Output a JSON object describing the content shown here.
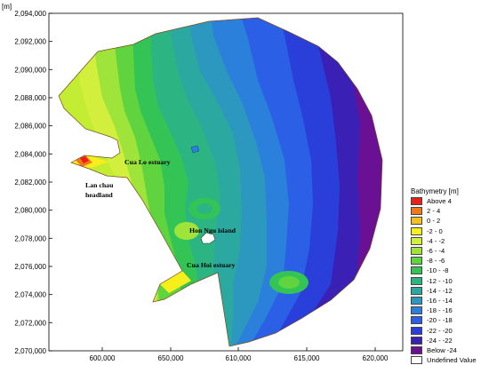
{
  "map": {
    "unit_label": "[m]",
    "y_ticks": [
      "2,094,000",
      "2,092,000",
      "2,090,000",
      "2,088,000",
      "2,086,000",
      "2,084,000",
      "2,082,000",
      "2,080,000",
      "2,078,000",
      "2,076,000",
      "2,074,000",
      "2,072,000",
      "2,070,000"
    ],
    "x_ticks": [
      "600,000",
      "650,000",
      "610,000",
      "615,000",
      "620,000"
    ],
    "annotations": [
      "Cua Lo estuary",
      "Lan chau",
      "headland",
      "Hon Ngu island",
      "Cua Hoi estuary"
    ]
  },
  "legend": {
    "title": "Bathymetry [m]",
    "items": [
      {
        "label": "Above   4",
        "color": "#e8201a"
      },
      {
        "label": "2 -  4",
        "color": "#f2761a"
      },
      {
        "label": "0 -  2",
        "color": "#f6be22"
      },
      {
        "label": "-2 -  0",
        "color": "#f7ef1c"
      },
      {
        "label": "-4 -  -2",
        "color": "#d1ef3c"
      },
      {
        "label": "-6 -  -4",
        "color": "#9fe43a"
      },
      {
        "label": "-8 -  -6",
        "color": "#5fd43e"
      },
      {
        "label": "-10 -  -8",
        "color": "#34c456"
      },
      {
        "label": "-12 -  -10",
        "color": "#2cb582"
      },
      {
        "label": "-14 -  -12",
        "color": "#2ba8a0"
      },
      {
        "label": "-16 -  -14",
        "color": "#2c97bf"
      },
      {
        "label": "-18 -  -16",
        "color": "#2b80dc"
      },
      {
        "label": "-20 -  -18",
        "color": "#2a5fe6"
      },
      {
        "label": "-22 -  -20",
        "color": "#2a3fd9"
      },
      {
        "label": "-24 -  -22",
        "color": "#3a20b5"
      },
      {
        "label": "Below  -24",
        "color": "#6a1094"
      },
      {
        "label": "Undefined Value",
        "color": "#ffffff"
      }
    ]
  }
}
